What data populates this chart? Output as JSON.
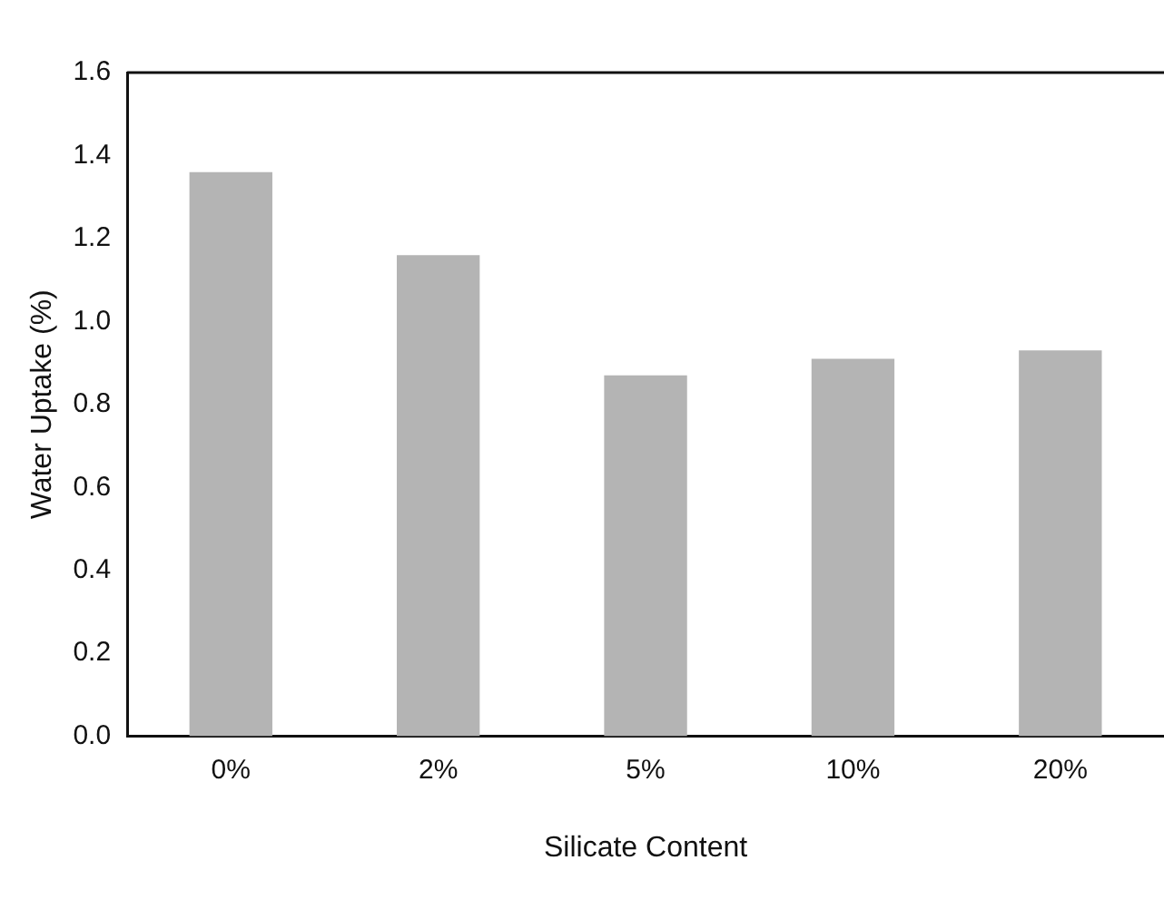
{
  "chart_data": {
    "type": "bar",
    "xlabel": "Silicate Content",
    "ylabel": "Water Uptake (%)",
    "categories": [
      "0%",
      "2%",
      "5%",
      "10%",
      "20%"
    ],
    "values": [
      1.36,
      1.16,
      0.87,
      0.91,
      0.93
    ],
    "color": "#b4b4b4",
    "ylim": [
      0,
      1.6
    ],
    "yticks": [
      {
        "value": 0,
        "label": "0.0"
      },
      {
        "value": 0.2,
        "label": "0.2"
      },
      {
        "value": 0.4,
        "label": "0.4"
      },
      {
        "value": 0.6,
        "label": "0.6"
      },
      {
        "value": 0.8,
        "label": "0.8"
      },
      {
        "value": 1,
        "label": "1.0"
      },
      {
        "value": 1.2,
        "label": "1.2"
      },
      {
        "value": 1.4,
        "label": "1.4"
      },
      {
        "value": 1.6,
        "label": "1.6"
      }
    ],
    "grid": false,
    "legend": false
  }
}
